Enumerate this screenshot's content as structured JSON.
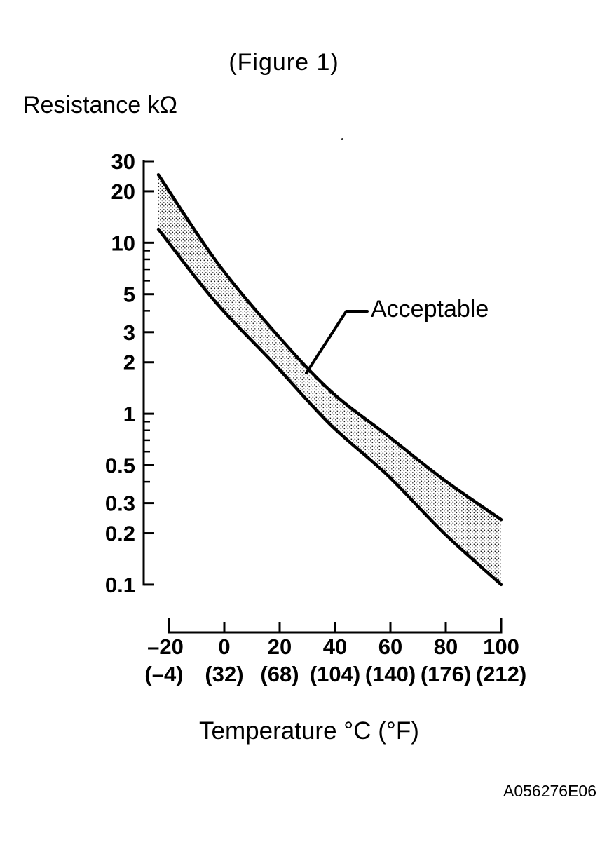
{
  "figure": {
    "title": "(Figure 1)",
    "y_axis_title": "Resistance kΩ",
    "x_axis_title": "Temperature °C (°F)",
    "annotation": "Acceptable",
    "doc_code": "A056276E06"
  },
  "chart_data": {
    "type": "area",
    "title": "(Figure 1)",
    "ylabel": "Resistance kΩ",
    "xlabel": "Temperature °C (°F)",
    "y_scale": "log",
    "ylim": [
      0.1,
      30
    ],
    "xlim": [
      -20,
      100
    ],
    "grid": false,
    "legend": "none",
    "x": [
      -20,
      0,
      20,
      40,
      60,
      80,
      100
    ],
    "series": [
      {
        "name": "upper-limit",
        "values": [
          25,
          7.9,
          3.1,
          1.37,
          0.75,
          0.41,
          0.24
        ]
      },
      {
        "name": "lower-limit",
        "values": [
          12,
          4.5,
          2.0,
          0.87,
          0.44,
          0.2,
          0.1
        ]
      }
    ],
    "band_label": "Acceptable",
    "band_fill": "halftone-dot-pattern",
    "line_color": "#000000",
    "y_ticks_major": [
      30,
      20,
      10,
      5,
      3,
      2,
      1,
      0.5,
      0.3,
      0.2,
      0.1
    ],
    "y_tick_labels": [
      "30",
      "20",
      "10",
      "5",
      "3",
      "2",
      "1",
      "0.5",
      "0.3",
      "0.2",
      "0.1"
    ],
    "y_ticks_minor": [
      9,
      8,
      7,
      6,
      4,
      0.9,
      0.8,
      0.7,
      0.6,
      0.4
    ],
    "x_ticks": [
      -20,
      0,
      20,
      40,
      60,
      80,
      100
    ],
    "x_tick_labels_c": [
      "–20",
      "0",
      "20",
      "40",
      "60",
      "80",
      "100"
    ],
    "x_tick_labels_f": [
      "(–4)",
      "(32)",
      "(68)",
      "(104)",
      "(140)",
      "(176)",
      "(212)"
    ]
  }
}
